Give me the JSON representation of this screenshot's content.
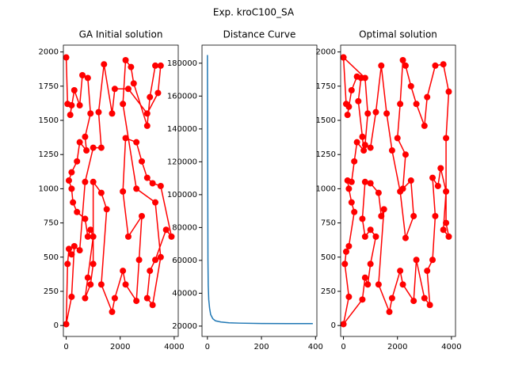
{
  "title": "Exp. kroC100_SA",
  "chart_data": [
    {
      "type": "route",
      "title": "GA Initial solution",
      "x": [
        0,
        50,
        200,
        150,
        300,
        500,
        600,
        800,
        900,
        700,
        750,
        500,
        400,
        200,
        100,
        200,
        250,
        400,
        700,
        800,
        900,
        1000,
        800,
        700,
        900,
        1000,
        1000,
        1300,
        1500,
        1300,
        1700,
        1800,
        2100,
        2200,
        2600,
        2700,
        2800,
        2300,
        2100,
        2200,
        2600,
        2800,
        3000,
        3200,
        3500,
        3900,
        3700,
        3300,
        3100,
        3000,
        3200,
        3500,
        3300,
        2600,
        2100,
        2200,
        2400,
        2500,
        3000,
        3100,
        3300,
        3500,
        3400,
        3000,
        2300,
        1800,
        1700,
        1400,
        1200,
        1300,
        1000,
        700,
        500,
        300,
        200,
        0,
        50,
        100,
        200
      ],
      "series": [
        {
          "color": "#ff0000",
          "values": [
            1960,
            1620,
            1610,
            1540,
            1720,
            1610,
            1830,
            1810,
            1550,
            1380,
            1280,
            1340,
            1200,
            1120,
            1060,
            1000,
            900,
            830,
            780,
            650,
            700,
            650,
            350,
            200,
            300,
            450,
            1050,
            970,
            850,
            300,
            100,
            200,
            400,
            300,
            180,
            480,
            800,
            650,
            980,
            1370,
            1340,
            1200,
            1080,
            1040,
            1020,
            650,
            700,
            480,
            400,
            200,
            150,
            500,
            900,
            1000,
            1620,
            1940,
            1890,
            1770,
            1460,
            1670,
            1900,
            1900,
            1700,
            1550,
            1730,
            1730,
            1550,
            1910,
            1560,
            1300,
            1300,
            1050,
            550,
            580,
            210,
            10,
            450,
            560,
            520
          ]
        }
      ],
      "xlim": [
        -105,
        4150
      ],
      "ylim": [
        -80,
        2050
      ],
      "xticks": [
        0,
        2000,
        4000
      ],
      "yticks": [
        0,
        250,
        500,
        750,
        1000,
        1250,
        1500,
        1750,
        2000
      ]
    },
    {
      "type": "line",
      "title": "Distance Curve",
      "x": [
        0,
        1,
        2,
        3,
        5,
        8,
        12,
        20,
        30,
        50,
        80,
        120,
        200,
        300,
        390
      ],
      "series": [
        {
          "color": "#1f77b4",
          "values": [
            185000,
            120000,
            60000,
            45000,
            36000,
            31000,
            27000,
            24500,
            23200,
            22500,
            22000,
            21800,
            21600,
            21500,
            21500
          ]
        }
      ],
      "xlim": [
        -20,
        405
      ],
      "ylim": [
        13700,
        191000
      ],
      "xticks": [
        0,
        200,
        400
      ],
      "yticks": [
        20000,
        40000,
        60000,
        80000,
        100000,
        120000,
        140000,
        160000,
        180000
      ]
    },
    {
      "type": "route",
      "title": "Optimal solution",
      "x": [
        0,
        100,
        200,
        150,
        300,
        500,
        650,
        550,
        700,
        750,
        500,
        400,
        300,
        150,
        200,
        300,
        400,
        200,
        100,
        50,
        200,
        0,
        700,
        800,
        900,
        1000,
        1200,
        1000,
        800,
        700,
        800,
        1000,
        1300,
        1400,
        1500,
        1300,
        1700,
        1800,
        2100,
        2200,
        2600,
        2700,
        3000,
        3200,
        3100,
        3300,
        3400,
        3300,
        3500,
        3600,
        3800,
        3700,
        3900,
        3800,
        3800,
        3900,
        3700,
        3400,
        3100,
        3000,
        2700,
        2500,
        2300,
        2200,
        2100,
        2000,
        2300,
        2200,
        2500,
        2600,
        2300,
        2100,
        1800,
        1600,
        1400,
        1200,
        1000,
        800,
        900,
        800,
        0
      ],
      "series": [
        {
          "color": "#ff0000",
          "values": [
            1960,
            1620,
            1600,
            1540,
            1720,
            1820,
            1810,
            1640,
            1380,
            1280,
            1340,
            1200,
            1050,
            1060,
            1000,
            900,
            830,
            580,
            540,
            450,
            210,
            10,
            190,
            350,
            300,
            450,
            650,
            700,
            650,
            780,
            1050,
            1040,
            970,
            800,
            850,
            300,
            100,
            200,
            400,
            300,
            180,
            480,
            200,
            150,
            400,
            480,
            800,
            1080,
            1020,
            1150,
            980,
            700,
            650,
            750,
            1370,
            1710,
            1910,
            1900,
            1670,
            1460,
            1620,
            1750,
            1900,
            1940,
            1620,
            1370,
            1250,
            1000,
            1060,
            800,
            640,
            980,
            1280,
            1550,
            1900,
            1560,
            1300,
            1320,
            1550,
            1810,
            1960
          ]
        }
      ],
      "xlim": [
        -105,
        4150
      ],
      "ylim": [
        -80,
        2050
      ],
      "xticks": [
        0,
        2000,
        4000
      ],
      "yticks": [
        0,
        250,
        500,
        750,
        1000,
        1250,
        1500,
        1750,
        2000
      ]
    }
  ]
}
